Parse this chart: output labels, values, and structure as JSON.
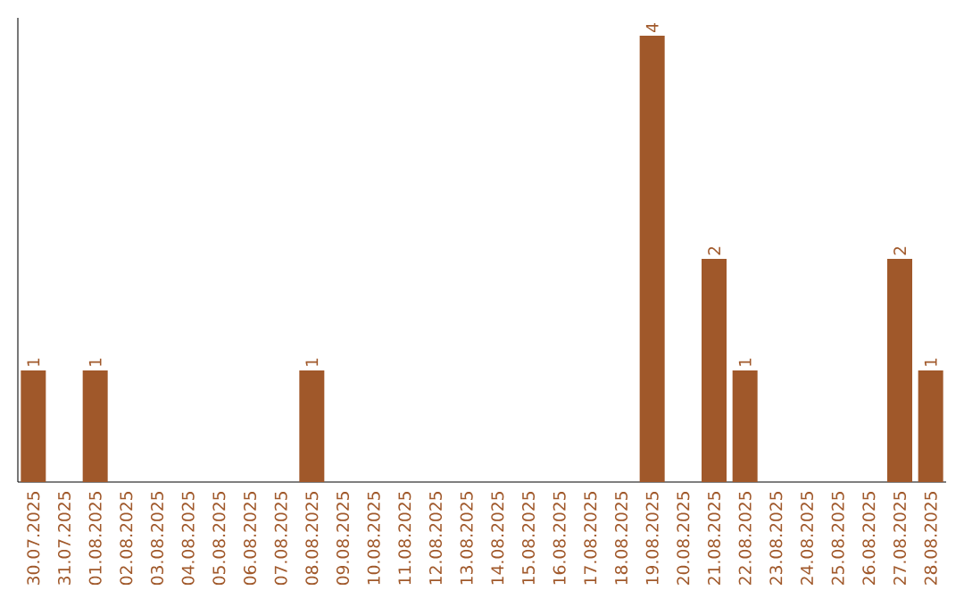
{
  "chart_data": {
    "type": "bar",
    "categories": [
      "30.07.2025",
      "31.07.2025",
      "01.08.2025",
      "02.08.2025",
      "03.08.2025",
      "04.08.2025",
      "05.08.2025",
      "06.08.2025",
      "07.08.2025",
      "08.08.2025",
      "09.08.2025",
      "10.08.2025",
      "11.08.2025",
      "12.08.2025",
      "13.08.2025",
      "14.08.2025",
      "15.08.2025",
      "16.08.2025",
      "17.08.2025",
      "18.08.2025",
      "19.08.2025",
      "20.08.2025",
      "21.08.2025",
      "22.08.2025",
      "23.08.2025",
      "24.08.2025",
      "25.08.2025",
      "26.08.2025",
      "27.08.2025",
      "28.08.2025"
    ],
    "values": [
      1,
      0,
      1,
      0,
      0,
      0,
      0,
      0,
      0,
      1,
      0,
      0,
      0,
      0,
      0,
      0,
      0,
      0,
      0,
      0,
      4,
      0,
      2,
      1,
      0,
      0,
      0,
      0,
      2,
      1
    ],
    "value_labels": [
      "1",
      null,
      "1",
      null,
      null,
      null,
      null,
      null,
      null,
      "1",
      null,
      null,
      null,
      null,
      null,
      null,
      null,
      null,
      null,
      null,
      "4",
      null,
      "2",
      "1",
      null,
      null,
      null,
      null,
      "2",
      "1"
    ],
    "color": "#a0582a",
    "tick_labels": "x"
  }
}
